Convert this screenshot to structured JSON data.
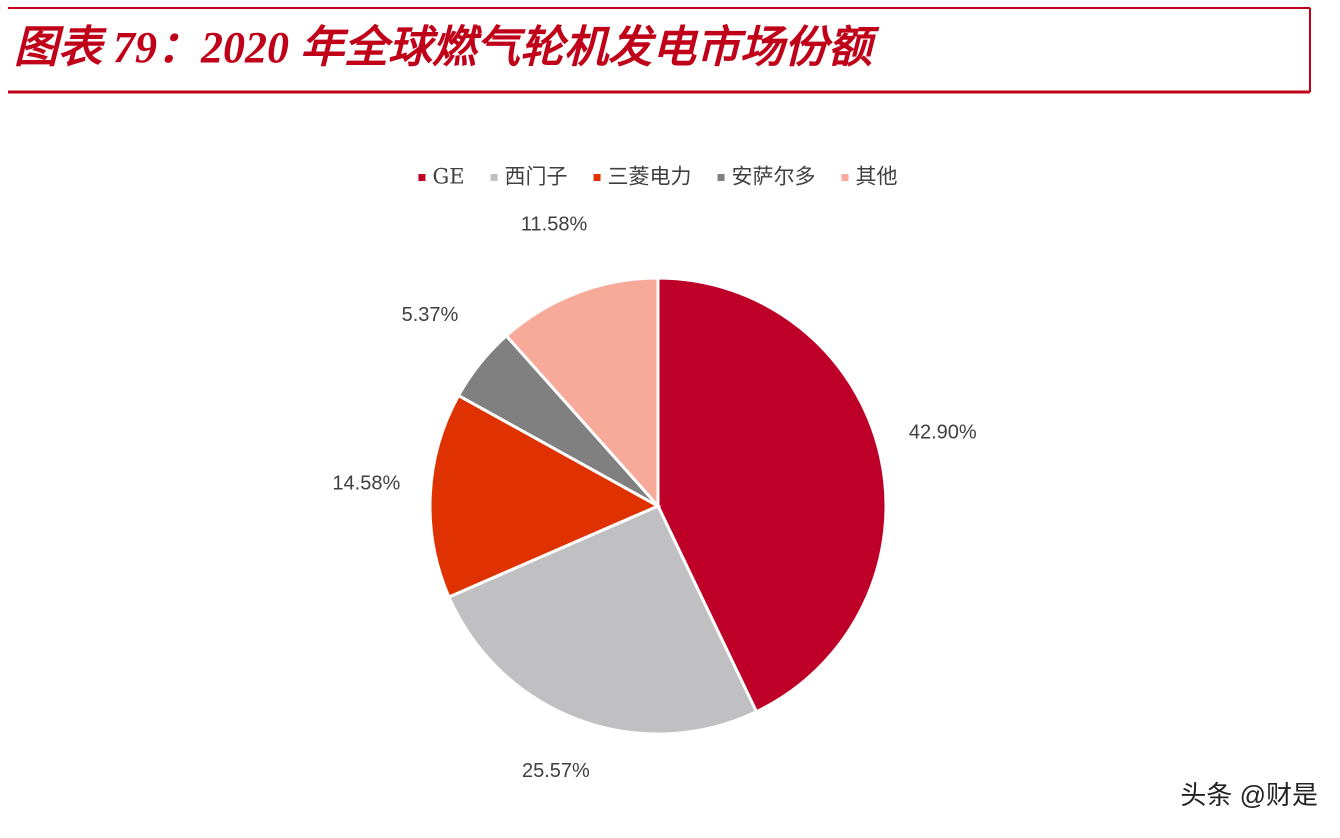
{
  "chart_data": {
    "type": "pie",
    "title": "图表 79：2020 年全球燃气轮机发电市场份额",
    "categories": [
      "GE",
      "西门子",
      "三菱电力",
      "安萨尔多",
      "其他"
    ],
    "values": [
      42.9,
      25.57,
      14.58,
      5.37,
      11.58
    ],
    "value_labels": [
      "42.90%",
      "25.57%",
      "14.58%",
      "5.37%",
      "11.58%"
    ],
    "colors": [
      "#be0029",
      "#c0bfc1",
      "#e03200",
      "#808080",
      "#f7a99a"
    ],
    "legend": "top",
    "watermark": "头条 @财是"
  }
}
